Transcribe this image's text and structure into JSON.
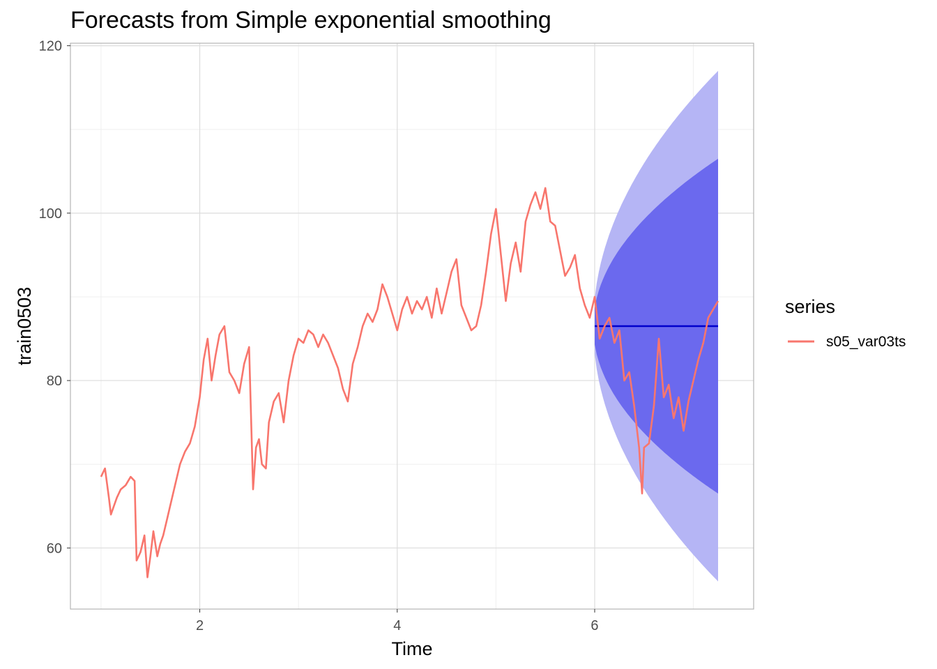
{
  "chart_data": {
    "type": "line",
    "title": "Forecasts from Simple exponential smoothing",
    "xlabel": "Time",
    "ylabel": "train0503",
    "xlim": [
      0.69,
      7.61
    ],
    "ylim": [
      52.7,
      120.3
    ],
    "x_ticks": [
      2,
      4,
      6
    ],
    "x_tick_labels": [
      "2",
      "4",
      "6"
    ],
    "y_ticks": [
      60,
      80,
      100,
      120
    ],
    "y_tick_labels": [
      "60",
      "80",
      "100",
      "120"
    ],
    "grid": true,
    "legend": {
      "title": "series",
      "position": "right",
      "entries": [
        "s05_var03ts"
      ]
    },
    "colors": {
      "series": "#F8766D",
      "forecast_line": "#0000CC",
      "interval_80": "#6B69EE",
      "interval_95": "#B5B5F5",
      "grid_major": "#DCDCDC",
      "grid_minor": "#EFEFEF",
      "panel_border": "#B3B3B3"
    },
    "series": [
      {
        "name": "s05_var03ts",
        "x": [
          1.0,
          1.04,
          1.08,
          1.1,
          1.13,
          1.16,
          1.2,
          1.25,
          1.3,
          1.34,
          1.36,
          1.4,
          1.44,
          1.47,
          1.5,
          1.53,
          1.57,
          1.6,
          1.63,
          1.67,
          1.7,
          1.75,
          1.8,
          1.85,
          1.9,
          1.95,
          2.0,
          2.04,
          2.08,
          2.12,
          2.16,
          2.2,
          2.25,
          2.3,
          2.35,
          2.4,
          2.45,
          2.5,
          2.54,
          2.57,
          2.6,
          2.63,
          2.67,
          2.7,
          2.75,
          2.8,
          2.85,
          2.9,
          2.95,
          3.0,
          3.05,
          3.1,
          3.15,
          3.2,
          3.25,
          3.3,
          3.35,
          3.4,
          3.45,
          3.5,
          3.55,
          3.6,
          3.65,
          3.7,
          3.75,
          3.8,
          3.85,
          3.9,
          3.95,
          4.0,
          4.05,
          4.1,
          4.15,
          4.2,
          4.25,
          4.3,
          4.35,
          4.4,
          4.45,
          4.5,
          4.55,
          4.6,
          4.65,
          4.7,
          4.75,
          4.8,
          4.85,
          4.9,
          4.95,
          5.0,
          5.05,
          5.1,
          5.15,
          5.2,
          5.25,
          5.3,
          5.35,
          5.4,
          5.45,
          5.5,
          5.55,
          5.6,
          5.65,
          5.7,
          5.75,
          5.8,
          5.85,
          5.9,
          5.95,
          6.0,
          6.05,
          6.1,
          6.15,
          6.2,
          6.25,
          6.3,
          6.35,
          6.4,
          6.45,
          6.48,
          6.5,
          6.55,
          6.6,
          6.65,
          6.7,
          6.75,
          6.8,
          6.85,
          6.9,
          6.95,
          7.0,
          7.05,
          7.1,
          7.15,
          7.2,
          7.25
        ],
        "values": [
          68.5,
          69.5,
          66.0,
          64.0,
          65.0,
          66.0,
          67.0,
          67.5,
          68.5,
          68.0,
          58.5,
          59.5,
          61.5,
          56.5,
          59.0,
          62.0,
          59.0,
          60.5,
          61.5,
          63.5,
          65.0,
          67.5,
          70.0,
          71.5,
          72.5,
          74.5,
          78.0,
          82.5,
          85.0,
          80.0,
          83.0,
          85.5,
          86.5,
          81.0,
          80.0,
          78.5,
          82.0,
          84.0,
          67.0,
          72.0,
          73.0,
          70.0,
          69.5,
          75.0,
          77.5,
          78.5,
          75.0,
          80.0,
          83.0,
          85.0,
          84.5,
          86.0,
          85.5,
          84.0,
          85.5,
          84.5,
          83.0,
          81.5,
          79.0,
          77.5,
          82.0,
          84.0,
          86.5,
          88.0,
          87.0,
          88.5,
          91.5,
          90.0,
          88.0,
          86.0,
          88.5,
          90.0,
          88.0,
          89.5,
          88.5,
          90.0,
          87.5,
          91.0,
          88.0,
          90.5,
          93.0,
          94.5,
          89.0,
          87.5,
          86.0,
          86.5,
          89.0,
          93.0,
          97.5,
          100.5,
          95.0,
          89.5,
          94.0,
          96.5,
          93.0,
          99.0,
          101.0,
          102.5,
          100.5,
          103.0,
          99.0,
          98.5,
          95.5,
          92.5,
          93.5,
          95.0,
          91.0,
          89.0,
          87.5,
          90.0,
          85.0,
          86.5,
          87.5,
          84.5,
          86.0,
          80.0,
          81.0,
          77.0,
          72.0,
          66.5,
          72.0,
          72.5,
          77.0,
          85.0,
          78.0,
          79.5,
          75.5,
          78.0,
          74.0,
          77.5,
          80.0,
          82.5,
          84.5,
          87.5,
          88.5,
          89.5
        ]
      }
    ],
    "forecast": {
      "x_start": 6.0,
      "x_end": 7.25,
      "point": 86.5,
      "lo80_end": 66.5,
      "hi80_end": 106.5,
      "lo95_end": 56.0,
      "hi95_end": 117.0
    }
  }
}
